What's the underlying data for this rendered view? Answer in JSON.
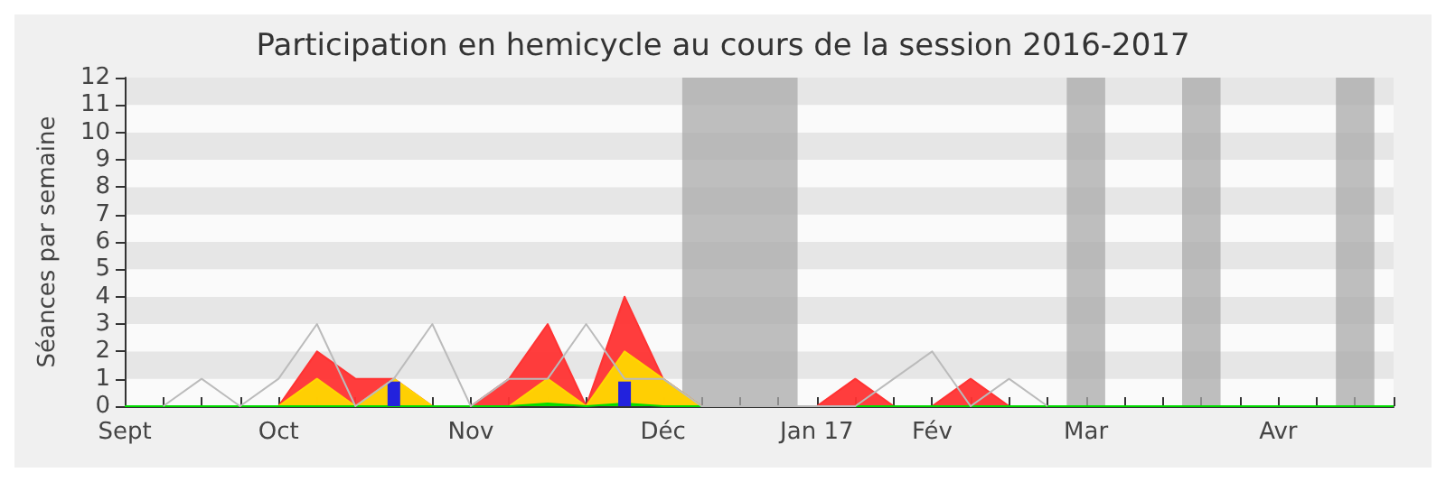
{
  "chart_data": {
    "type": "area",
    "title": "Participation en hemicycle au cours de la session 2016-2017",
    "ylabel": "Séances par semaine",
    "categories": [
      "Sept",
      null,
      null,
      null,
      "Oct",
      null,
      null,
      null,
      null,
      "Nov",
      null,
      null,
      null,
      null,
      "Déc",
      null,
      null,
      null,
      "Jan 17",
      null,
      null,
      "Fév",
      null,
      null,
      null,
      "Mar",
      null,
      null,
      null,
      null,
      "Avr",
      null,
      null,
      null
    ],
    "ylim": [
      0,
      12
    ],
    "yticks": [
      0,
      1,
      2,
      3,
      4,
      5,
      6,
      7,
      8,
      9,
      10,
      11,
      12
    ],
    "marker": "none",
    "series": [
      {
        "type": "line",
        "color": "#bbbbbb",
        "values": [
          null,
          0,
          1,
          0,
          1,
          3,
          0,
          1,
          3,
          0,
          1,
          1,
          3,
          1,
          1,
          0,
          0,
          0,
          0,
          0,
          1,
          2,
          0,
          1,
          0,
          null,
          null,
          null,
          null,
          null,
          null,
          null,
          null,
          null
        ]
      },
      {
        "color": "#ff3333",
        "values": [
          0,
          0,
          0,
          0,
          0,
          2,
          1,
          1,
          0,
          0,
          1,
          3,
          0,
          4,
          1,
          0,
          0,
          0,
          0,
          1,
          0,
          0,
          1,
          0,
          0,
          0,
          0,
          0,
          0,
          0,
          0,
          0,
          0,
          0
        ]
      },
      {
        "color": "#ffd700",
        "values": [
          0,
          0,
          0,
          0,
          0,
          1,
          0,
          1,
          0,
          0,
          0,
          1,
          0,
          2,
          1,
          0,
          0,
          0,
          0,
          0,
          0,
          0,
          0,
          0,
          0,
          0,
          0,
          0,
          0,
          0,
          0,
          0,
          0,
          0
        ]
      },
      {
        "color": "#00dd00",
        "values": [
          0,
          0,
          0,
          0,
          0,
          0,
          0,
          0,
          0,
          0,
          0,
          0.1,
          0,
          0.1,
          0,
          0,
          0,
          0,
          0,
          0,
          0,
          0,
          0,
          0,
          0,
          0,
          0,
          0,
          0,
          0,
          0,
          0,
          0,
          0
        ]
      },
      {
        "type": "bar",
        "color": "#2222dd",
        "values": [
          null,
          null,
          null,
          null,
          null,
          null,
          null,
          0.9,
          null,
          null,
          null,
          null,
          null,
          0.9,
          null,
          null,
          null,
          null,
          null,
          null,
          null,
          null,
          null,
          null,
          null,
          null,
          null,
          null,
          null,
          null,
          null,
          null,
          null,
          null
        ]
      }
    ]
  }
}
